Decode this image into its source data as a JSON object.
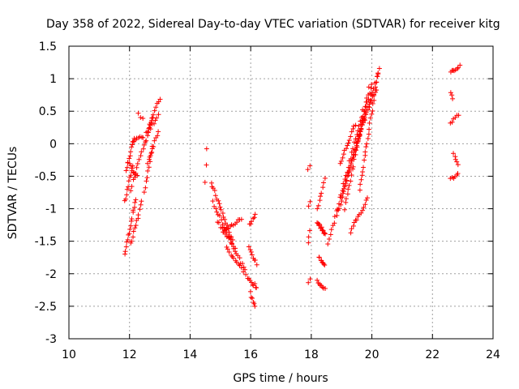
{
  "chart_data": {
    "type": "scatter",
    "title": "Day 358 of 2022, Sidereal Day-to-day VTEC variation (SDTVAR) for receiver kitg",
    "xlabel": "GPS time / hours",
    "ylabel": "SDTVAR / TECUs",
    "xlim": [
      10,
      24
    ],
    "ylim": [
      -3,
      1.5
    ],
    "xticks": [
      10,
      12,
      14,
      16,
      18,
      20,
      22,
      24
    ],
    "yticks": [
      -3,
      -2.5,
      -2,
      -1.5,
      -1,
      -0.5,
      0,
      0.5,
      1,
      1.5
    ],
    "xtick_labels": [
      "10",
      "12",
      "14",
      "16",
      "18",
      "20",
      "22",
      "24"
    ],
    "ytick_labels": [
      "-3",
      "-2.5",
      "-2",
      "-1.5",
      "-1",
      "-0.5",
      "0",
      "0.5",
      "1",
      "1.5"
    ],
    "grid": true,
    "marker": "plus",
    "color": "#ff0000",
    "segments": [
      {
        "x0": 11.85,
        "y0": -1.7,
        "x1": 12.2,
        "y1": -0.85,
        "n": 16
      },
      {
        "x0": 11.85,
        "y0": -0.9,
        "x1": 12.1,
        "y1": -0.35,
        "n": 10
      },
      {
        "x0": 11.9,
        "y0": -0.4,
        "x1": 12.15,
        "y1": 0.1,
        "n": 10
      },
      {
        "x0": 11.95,
        "y0": -0.3,
        "x1": 12.25,
        "y1": -0.5,
        "n": 8
      },
      {
        "x0": 12.05,
        "y0": -1.55,
        "x1": 12.4,
        "y1": -0.9,
        "n": 12
      },
      {
        "x0": 12.05,
        "y0": -0.7,
        "x1": 12.4,
        "y1": -0.1,
        "n": 10
      },
      {
        "x0": 12.1,
        "y0": 0.05,
        "x1": 12.45,
        "y1": 0.1,
        "n": 8
      },
      {
        "x0": 12.3,
        "y0": 0.45,
        "x1": 12.45,
        "y1": 0.4,
        "n": 3
      },
      {
        "x0": 12.5,
        "y0": -0.75,
        "x1": 12.75,
        "y1": -0.05,
        "n": 10
      },
      {
        "x0": 12.45,
        "y0": -0.1,
        "x1": 12.75,
        "y1": 0.4,
        "n": 10
      },
      {
        "x0": 12.55,
        "y0": 0.15,
        "x1": 13.0,
        "y1": 0.7,
        "n": 12
      },
      {
        "x0": 12.6,
        "y0": -0.3,
        "x1": 12.95,
        "y1": 0.2,
        "n": 10
      },
      {
        "x0": 12.7,
        "y0": 0.25,
        "x1": 12.95,
        "y1": 0.45,
        "n": 6
      },
      {
        "x0": 14.5,
        "y0": -0.6,
        "x1": 14.55,
        "y1": -0.1,
        "n": 3
      },
      {
        "x0": 14.7,
        "y0": -0.6,
        "x1": 15.4,
        "y1": -1.5,
        "n": 20
      },
      {
        "x0": 14.75,
        "y0": -0.9,
        "x1": 15.9,
        "y1": -2.05,
        "n": 26
      },
      {
        "x0": 14.9,
        "y0": -1.2,
        "x1": 15.5,
        "y1": -1.6,
        "n": 12
      },
      {
        "x0": 15.1,
        "y0": -1.35,
        "x1": 15.7,
        "y1": -1.15,
        "n": 12
      },
      {
        "x0": 15.2,
        "y0": -1.6,
        "x1": 15.75,
        "y1": -1.95,
        "n": 12
      },
      {
        "x0": 15.95,
        "y0": -1.25,
        "x1": 16.15,
        "y1": -1.1,
        "n": 6
      },
      {
        "x0": 15.95,
        "y0": -1.6,
        "x1": 16.2,
        "y1": -1.85,
        "n": 8
      },
      {
        "x0": 15.95,
        "y0": -2.1,
        "x1": 16.2,
        "y1": -2.2,
        "n": 8
      },
      {
        "x0": 16.0,
        "y0": -2.3,
        "x1": 16.15,
        "y1": -2.5,
        "n": 6
      },
      {
        "x0": 17.9,
        "y0": -0.4,
        "x1": 17.95,
        "y1": -0.35,
        "n": 2
      },
      {
        "x0": 17.9,
        "y0": -0.95,
        "x1": 17.95,
        "y1": -0.9,
        "n": 2
      },
      {
        "x0": 17.9,
        "y0": -1.5,
        "x1": 17.95,
        "y1": -1.35,
        "n": 3
      },
      {
        "x0": 17.9,
        "y0": -2.15,
        "x1": 17.95,
        "y1": -2.1,
        "n": 2
      },
      {
        "x0": 18.2,
        "y0": -1.2,
        "x1": 18.45,
        "y1": -1.4,
        "n": 14
      },
      {
        "x0": 18.25,
        "y0": -1.75,
        "x1": 18.45,
        "y1": -1.85,
        "n": 8
      },
      {
        "x0": 18.2,
        "y0": -2.1,
        "x1": 18.45,
        "y1": -2.25,
        "n": 8
      },
      {
        "x0": 18.2,
        "y0": -1.0,
        "x1": 18.45,
        "y1": -0.55,
        "n": 8
      },
      {
        "x0": 18.55,
        "y0": -1.55,
        "x1": 19.7,
        "y1": 0.5,
        "n": 30
      },
      {
        "x0": 18.85,
        "y0": -1.1,
        "x1": 19.75,
        "y1": 0.4,
        "n": 26
      },
      {
        "x0": 18.95,
        "y0": -0.3,
        "x1": 19.45,
        "y1": 0.3,
        "n": 14
      },
      {
        "x0": 19.0,
        "y0": -0.8,
        "x1": 20.25,
        "y1": 1.15,
        "n": 34
      },
      {
        "x0": 19.1,
        "y0": -1.0,
        "x1": 19.9,
        "y1": 0.85,
        "n": 26
      },
      {
        "x0": 19.3,
        "y0": -1.35,
        "x1": 19.85,
        "y1": -0.85,
        "n": 14
      },
      {
        "x0": 19.5,
        "y0": 0.0,
        "x1": 20.0,
        "y1": 0.9,
        "n": 14
      },
      {
        "x0": 19.6,
        "y0": -0.7,
        "x1": 20.2,
        "y1": 1.1,
        "n": 26
      },
      {
        "x0": 19.7,
        "y0": 0.35,
        "x1": 20.15,
        "y1": 0.85,
        "n": 12
      },
      {
        "x0": 22.6,
        "y0": -0.55,
        "x1": 22.85,
        "y1": -0.45,
        "n": 6
      },
      {
        "x0": 22.7,
        "y0": -0.15,
        "x1": 22.85,
        "y1": -0.3,
        "n": 5
      },
      {
        "x0": 22.6,
        "y0": 0.3,
        "x1": 22.85,
        "y1": 0.45,
        "n": 6
      },
      {
        "x0": 22.6,
        "y0": 0.8,
        "x1": 22.65,
        "y1": 0.7,
        "n": 3
      },
      {
        "x0": 22.6,
        "y0": 1.1,
        "x1": 22.9,
        "y1": 1.2,
        "n": 8
      }
    ]
  }
}
